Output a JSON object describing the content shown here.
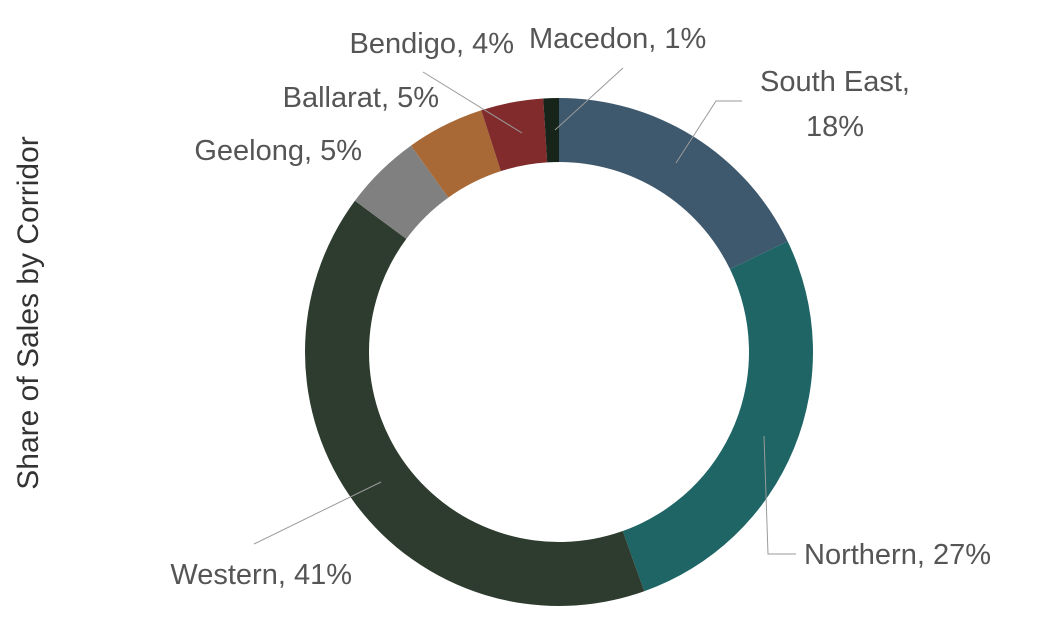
{
  "chart_data": {
    "type": "pie",
    "variant": "donut",
    "ylabel": "Share of Sales by Corridor",
    "series": [
      {
        "slices": [
          {
            "label": "South East",
            "value": 18,
            "value_text": "18%",
            "color": "#3e596d"
          },
          {
            "label": "Northern",
            "value": 27,
            "value_text": "27%",
            "color": "#1f6566"
          },
          {
            "label": "Western",
            "value": 41,
            "value_text": "41%",
            "color": "#2d3c2e"
          },
          {
            "label": "Geelong",
            "value": 5,
            "value_text": "5%",
            "color": "#808080"
          },
          {
            "label": "Ballarat",
            "value": 5,
            "value_text": "5%",
            "color": "#a86936"
          },
          {
            "label": "Bendigo",
            "value": 4,
            "value_text": "4%",
            "color": "#812b2c"
          },
          {
            "label": "Macedon",
            "value": 1,
            "value_text": "1%",
            "color": "#16241a"
          }
        ]
      }
    ],
    "legend": "none",
    "start_angle": "top, clockwise"
  }
}
